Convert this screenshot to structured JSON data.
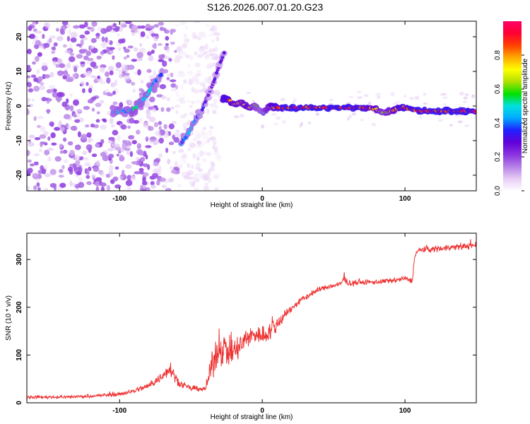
{
  "title": "S126.2026.007.01.20.G23",
  "chart_data": [
    {
      "type": "heatmap",
      "xlabel": "Height of straight line (km)",
      "ylabel": "Frequency (Hz)",
      "xlim": [
        -165,
        150
      ],
      "ylim": [
        -24.5,
        24.5
      ],
      "x_ticks": [
        -100,
        0,
        100
      ],
      "y_ticks": [
        -20,
        -10,
        0,
        10,
        20
      ],
      "grid": false,
      "colorbar": {
        "label": "Normalized spectral amplitude",
        "range": [
          0,
          1
        ],
        "ticks": [
          "0.0",
          "0.2",
          "0.4",
          "0.6",
          "0.8"
        ],
        "colors": [
          "#ffffff",
          "#e6ccf5",
          "#b580e6",
          "#8a33e0",
          "#6000d9",
          "#2020ff",
          "#00aaff",
          "#00e0e0",
          "#00e000",
          "#b0e000",
          "#ffff00",
          "#ffaa00",
          "#ff4000",
          "#ff0033",
          "#ff0066"
        ]
      },
      "features": {
        "main_line": {
          "x": [
            -28,
            -24,
            -20,
            -15,
            -10,
            -5,
            0,
            5,
            10,
            20,
            30,
            40,
            50,
            60,
            70,
            80,
            85,
            90,
            95,
            100,
            110,
            120,
            130,
            140,
            150
          ],
          "freq_hz": [
            2,
            2,
            0.5,
            1,
            -0.5,
            0,
            -2,
            0,
            -0.5,
            -0.5,
            -0.5,
            -0.5,
            -0.5,
            -0.5,
            -0.5,
            -1,
            -2,
            -1.5,
            -0.5,
            -0.5,
            -1.5,
            -1.5,
            -1.5,
            -1.5,
            -1.5
          ],
          "amplitude": [
            0.85,
            0.9,
            0.8,
            0.75,
            0.8,
            0.6,
            0.5,
            0.75,
            0.9,
            0.95,
            0.95,
            0.95,
            0.95,
            0.95,
            0.9,
            0.8,
            0.6,
            0.75,
            0.85,
            0.9,
            0.95,
            0.95,
            0.95,
            0.95,
            0.95
          ]
        },
        "diagonal_track_left": {
          "x": [
            -105,
            -100,
            -95,
            -90,
            -85,
            -80,
            -75,
            -70
          ],
          "freq_hz": [
            -2,
            -1.5,
            -1.5,
            -1,
            1,
            3.5,
            7,
            9.5
          ],
          "amplitude": [
            0.45,
            0.5,
            0.45,
            0.55,
            0.5,
            0.5,
            0.45,
            0.35
          ]
        },
        "diagonal_track_right": {
          "x": [
            -57,
            -52,
            -47,
            -42,
            -38,
            -34,
            -30,
            -26
          ],
          "freq_hz": [
            -11,
            -8,
            -4,
            -1,
            3,
            7,
            12,
            16
          ],
          "amplitude": [
            0.4,
            0.45,
            0.45,
            0.35,
            0.3,
            0.3,
            0.3,
            0.3
          ]
        },
        "noise_region": {
          "x_range": [
            -165,
            -30
          ],
          "freq_range": [
            -24.5,
            24.5
          ],
          "amplitude": 0.15
        }
      }
    },
    {
      "type": "line",
      "xlabel": "Height of straight line (km)",
      "ylabel": "SNR (10 * v/v)",
      "xlim": [
        -165,
        150
      ],
      "ylim": [
        0,
        355
      ],
      "x_ticks": [
        -100,
        0,
        100
      ],
      "y_ticks": [
        0,
        100,
        200,
        300
      ],
      "grid": false,
      "series": [
        {
          "name": "SNR",
          "color": "#ee3333",
          "x": [
            -165,
            -140,
            -120,
            -100,
            -90,
            -80,
            -70,
            -65,
            -62,
            -58,
            -50,
            -45,
            -40,
            -35,
            -30,
            -25,
            -20,
            -15,
            -10,
            -5,
            0,
            5,
            10,
            15,
            20,
            25,
            30,
            40,
            50,
            55,
            57,
            60,
            70,
            80,
            90,
            100,
            105,
            107,
            110,
            120,
            130,
            140,
            150
          ],
          "values": [
            12,
            12,
            14,
            18,
            25,
            35,
            55,
            75,
            60,
            40,
            30,
            30,
            28,
            80,
            120,
            110,
            105,
            120,
            135,
            145,
            140,
            150,
            160,
            185,
            195,
            210,
            220,
            238,
            245,
            248,
            260,
            250,
            252,
            253,
            255,
            260,
            255,
            310,
            320,
            322,
            325,
            327,
            330
          ],
          "spread": [
            5,
            5,
            5,
            6,
            8,
            10,
            15,
            25,
            20,
            10,
            8,
            8,
            8,
            40,
            60,
            50,
            45,
            40,
            35,
            30,
            30,
            30,
            30,
            20,
            12,
            10,
            10,
            8,
            8,
            10,
            15,
            8,
            8,
            8,
            8,
            8,
            8,
            10,
            10,
            10,
            10,
            10,
            10
          ]
        }
      ]
    }
  ]
}
